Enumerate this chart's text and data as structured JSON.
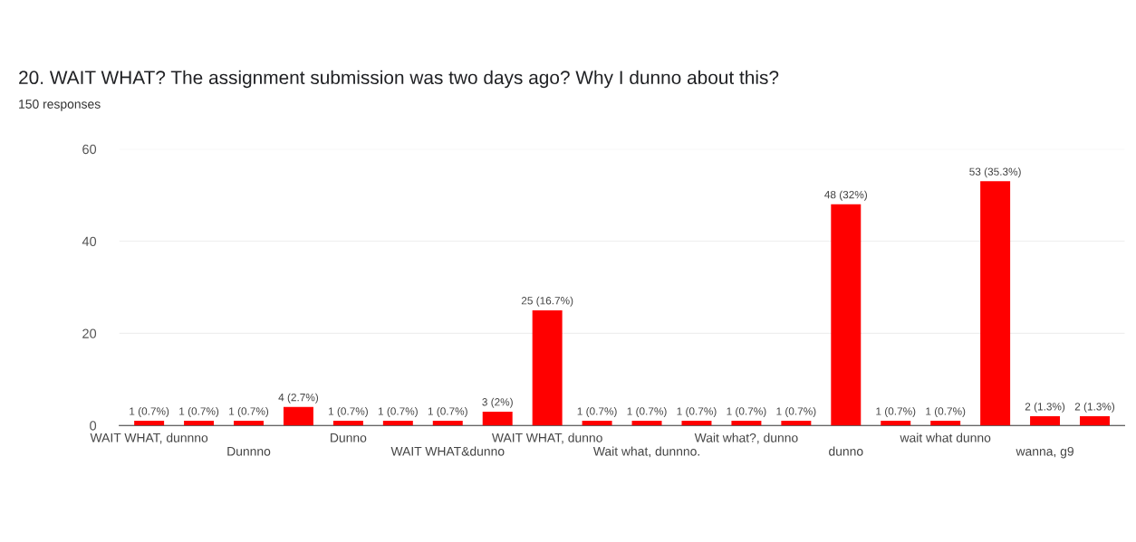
{
  "chart_data": {
    "type": "bar",
    "title": "20. WAIT WHAT? The assignment submission was two days ago? Why I dunno about this?",
    "subtitle": "150 responses",
    "categories": [
      "WAIT WHAT, dunnno",
      null,
      "Dunnno",
      null,
      "Dunno",
      null,
      "WAIT WHAT&dunno",
      null,
      "WAIT WHAT, dunno",
      null,
      "Wait what, dunnno.",
      null,
      "Wait what?, dunno",
      null,
      "dunno",
      null,
      "wait what dunno",
      null,
      "wanna, g9",
      null
    ],
    "values": [
      1,
      1,
      1,
      4,
      1,
      1,
      1,
      3,
      25,
      1,
      1,
      1,
      1,
      1,
      48,
      1,
      1,
      53,
      2,
      2
    ],
    "value_labels": [
      "1 (0.7%)",
      "1 (0.7%)",
      "1 (0.7%)",
      "4 (2.7%)",
      "1 (0.7%)",
      "1 (0.7%)",
      "1 (0.7%)",
      "3 (2%)",
      "25 (16.7%)",
      "1 (0.7%)",
      "1 (0.7%)",
      "1 (0.7%)",
      "1 (0.7%)",
      "1 (0.7%)",
      "48 (32%)",
      "1 (0.7%)",
      "1 (0.7%)",
      "53 (35.3%)",
      "2 (1.3%)",
      "2 (1.3%)"
    ],
    "color": "#ff0000",
    "ylim": [
      0,
      60
    ],
    "yticks": [
      0,
      20,
      40,
      60
    ],
    "grid": "y",
    "legend": false
  }
}
